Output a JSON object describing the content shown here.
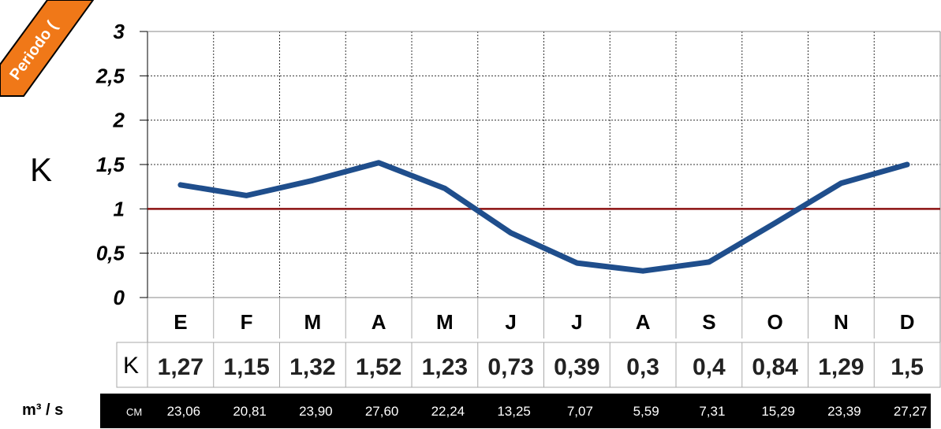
{
  "badge": {
    "text": "Periodo (",
    "color": "#f07818"
  },
  "chart_data": {
    "type": "line",
    "ylabel": "K",
    "ylim": [
      0,
      3
    ],
    "yticks": [
      0,
      0.5,
      1,
      1.5,
      2,
      2.5,
      3
    ],
    "ytick_labels": [
      "0",
      "0,5",
      "1",
      "1,5",
      "2",
      "2,5",
      "3"
    ],
    "categories": [
      "E",
      "F",
      "M",
      "A",
      "M",
      "J",
      "J",
      "A",
      "S",
      "O",
      "N",
      "D"
    ],
    "series": [
      {
        "values": [
          1.27,
          1.15,
          1.32,
          1.52,
          1.23,
          0.73,
          0.39,
          0.3,
          0.4,
          0.84,
          1.29,
          1.5
        ],
        "color": "#1f4e8c"
      }
    ],
    "reference_line": {
      "value": 1,
      "color": "#8b1010"
    },
    "grid": true,
    "k_row": {
      "label": "K",
      "values": [
        "1,27",
        "1,15",
        "1,32",
        "1,52",
        "1,23",
        "0,73",
        "0,39",
        "0,3",
        "0,4",
        "0,84",
        "1,29",
        "1,5"
      ]
    },
    "flow_row": {
      "unit": "m³ / s",
      "prefix": "CM",
      "values": [
        "23,06",
        "20,81",
        "23,90",
        "27,60",
        "22,24",
        "13,25",
        "7,07",
        "5,59",
        "7,31",
        "15,29",
        "23,39",
        "27,27"
      ]
    }
  }
}
